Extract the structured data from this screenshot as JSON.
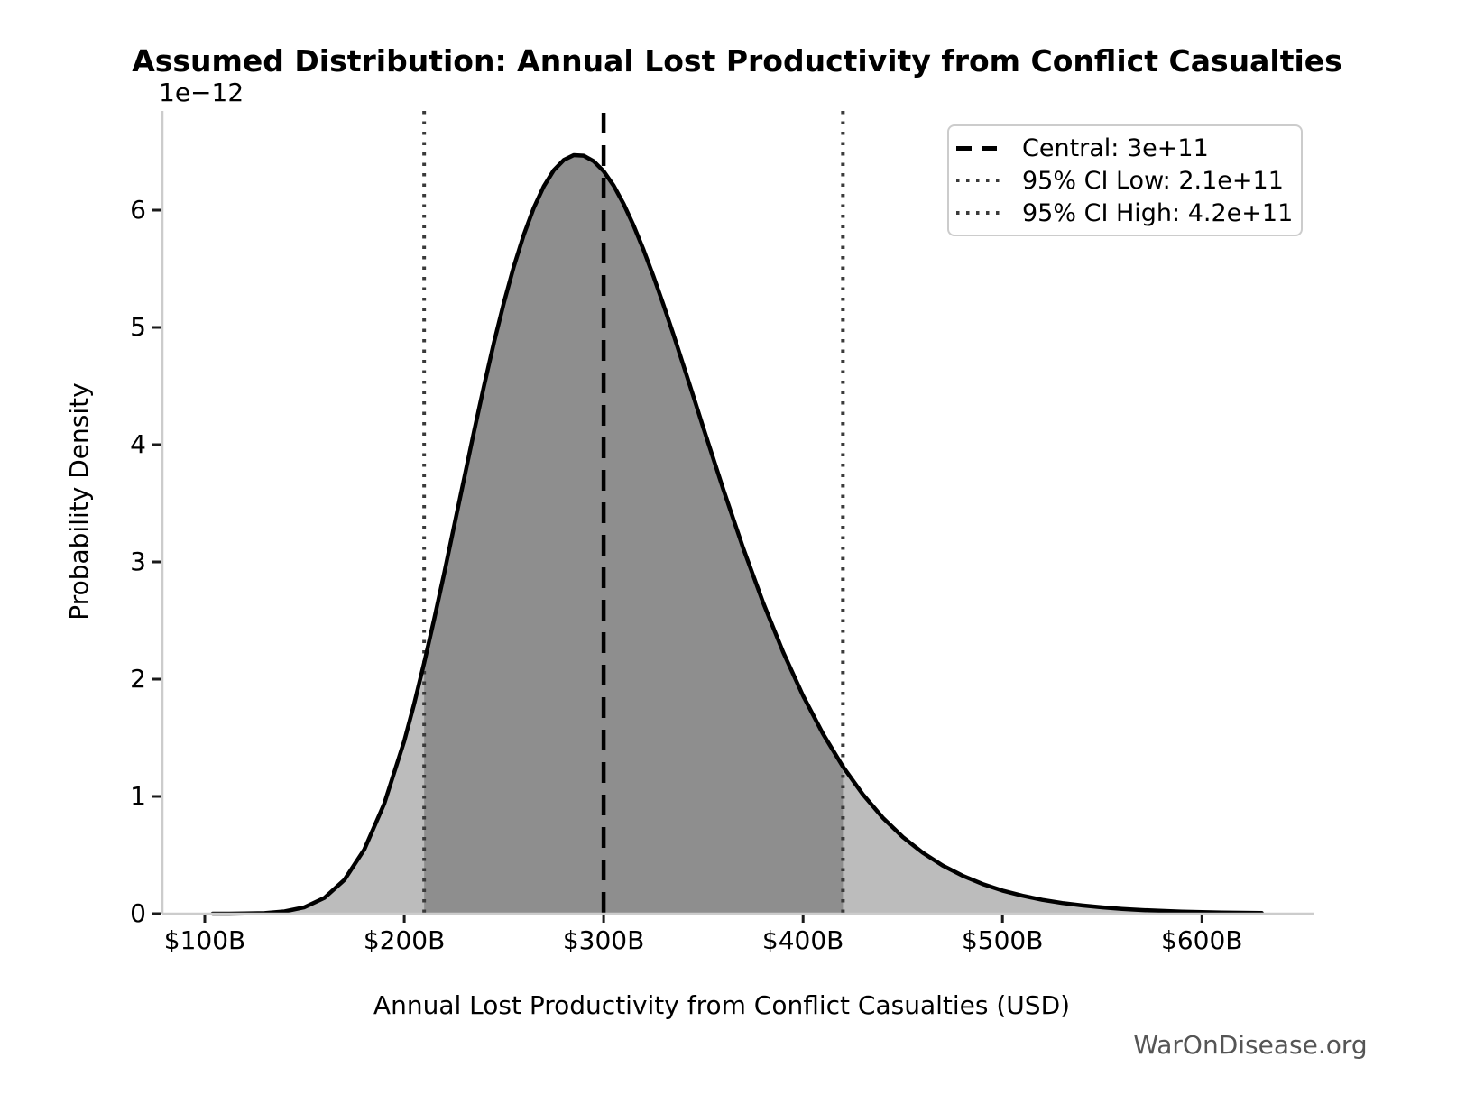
{
  "title": "Assumed Distribution: Annual Lost Productivity from Conflict Casualties",
  "watermark": "WarOnDisease.org",
  "chart_data": {
    "type": "area",
    "title": "Assumed Distribution: Annual Lost Productivity from Conflict Casualties",
    "xlabel": "Annual Lost Productivity from Conflict Casualties (USD)",
    "ylabel": "Probability Density",
    "y_offset_label": "1e−12",
    "x_tick_labels": [
      "$100B",
      "$200B",
      "$300B",
      "$400B",
      "$500B",
      "$600B"
    ],
    "x_tick_values_B": [
      100,
      200,
      300,
      400,
      500,
      600
    ],
    "y_tick_labels": [
      "0",
      "1",
      "2",
      "3",
      "4",
      "5",
      "6"
    ],
    "y_tick_values": [
      0,
      1,
      2,
      3,
      4,
      5,
      6
    ],
    "xlim_B": [
      79,
      657
    ],
    "ylim_1e12": [
      0,
      6.85
    ],
    "y_units": "1e-12 probability density per USD",
    "grid": false,
    "legend_position": "upper right",
    "central_B": 300,
    "ci_low_B": 210,
    "ci_high_B": 420,
    "legend": [
      {
        "label": "Central: 3e+11",
        "style": "dashed",
        "color": "#000000"
      },
      {
        "label": "95% CI Low: 2.1e+11",
        "style": "dotted",
        "color": "#3a3a3a"
      },
      {
        "label": "95% CI High: 4.2e+11",
        "style": "dotted",
        "color": "#3a3a3a"
      }
    ],
    "fill_colors": {
      "outer": "#bcbcbc",
      "inner": "#8e8e8e"
    },
    "curve_color": "#000000",
    "spine_color": "#cccccc",
    "curve_points": [
      [
        104,
        0.0001
      ],
      [
        110,
        0.0002
      ],
      [
        120,
        0.0012
      ],
      [
        130,
        0.005
      ],
      [
        140,
        0.019
      ],
      [
        150,
        0.055
      ],
      [
        160,
        0.135
      ],
      [
        170,
        0.288
      ],
      [
        180,
        0.548
      ],
      [
        190,
        0.938
      ],
      [
        200,
        1.472
      ],
      [
        205,
        1.79
      ],
      [
        210,
        2.139
      ],
      [
        215,
        2.51
      ],
      [
        220,
        2.9
      ],
      [
        225,
        3.304
      ],
      [
        230,
        3.709
      ],
      [
        235,
        4.111
      ],
      [
        240,
        4.501
      ],
      [
        245,
        4.87
      ],
      [
        250,
        5.212
      ],
      [
        255,
        5.521
      ],
      [
        260,
        5.792
      ],
      [
        265,
        6.02
      ],
      [
        270,
        6.203
      ],
      [
        275,
        6.34
      ],
      [
        280,
        6.428
      ],
      [
        285,
        6.469
      ],
      [
        290,
        6.465
      ],
      [
        295,
        6.418
      ],
      [
        300,
        6.332
      ],
      [
        305,
        6.209
      ],
      [
        310,
        6.054
      ],
      [
        315,
        5.869
      ],
      [
        320,
        5.662
      ],
      [
        325,
        5.435
      ],
      [
        330,
        5.193
      ],
      [
        335,
        4.939
      ],
      [
        340,
        4.678
      ],
      [
        345,
        4.412
      ],
      [
        350,
        4.145
      ],
      [
        355,
        3.881
      ],
      [
        360,
        3.62
      ],
      [
        370,
        3.118
      ],
      [
        380,
        2.653
      ],
      [
        390,
        2.232
      ],
      [
        400,
        1.858
      ],
      [
        410,
        1.533
      ],
      [
        420,
        1.253
      ],
      [
        430,
        1.017
      ],
      [
        440,
        0.818
      ],
      [
        450,
        0.654
      ],
      [
        460,
        0.52
      ],
      [
        470,
        0.411
      ],
      [
        480,
        0.324
      ],
      [
        490,
        0.253
      ],
      [
        500,
        0.197
      ],
      [
        510,
        0.153
      ],
      [
        520,
        0.118
      ],
      [
        530,
        0.091
      ],
      [
        540,
        0.07
      ],
      [
        550,
        0.054
      ],
      [
        560,
        0.041
      ],
      [
        570,
        0.031
      ],
      [
        580,
        0.024
      ],
      [
        590,
        0.018
      ],
      [
        600,
        0.014
      ],
      [
        610,
        0.01
      ],
      [
        620,
        0.008
      ],
      [
        630,
        0.006
      ]
    ]
  }
}
